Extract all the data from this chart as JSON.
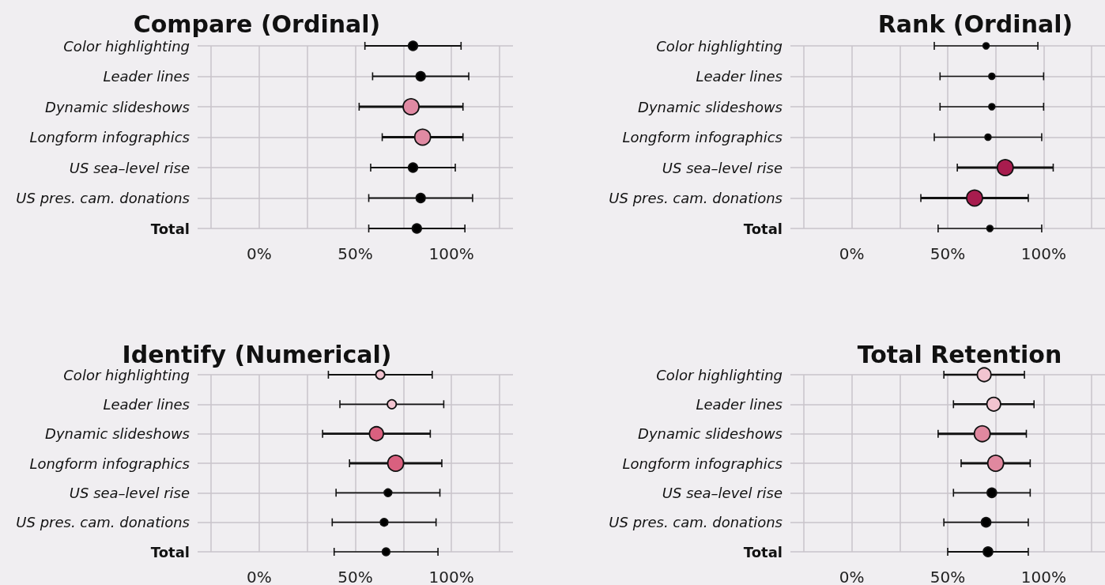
{
  "chart_data": [
    {
      "type": "bubble",
      "title": "Compare (Ordinal)",
      "categories": [
        "Color highlighting",
        "Leader lines",
        "Dynamic slideshows",
        "Longform infographics",
        "US sea–level rise",
        "US pres. cam. donations",
        "Total"
      ],
      "values": [
        80,
        84,
        79,
        85,
        80,
        84,
        82
      ],
      "errors": [
        [
          55,
          105
        ],
        [
          59,
          109
        ],
        [
          52,
          106
        ],
        [
          64,
          106
        ],
        [
          58,
          102
        ],
        [
          57,
          111
        ],
        [
          57,
          107
        ]
      ],
      "sizes": [
        0.33,
        0.33,
        1,
        1,
        0.33,
        0.33,
        0.33
      ],
      "colors": [
        "#000000",
        "#000000",
        "#e08aa3",
        "#e08aa3",
        "#000000",
        "#000000",
        "#000000"
      ],
      "orientation": "horizontal",
      "xlim": [
        -32,
        132
      ],
      "xticks": [
        {
          "value": -25,
          "label": null
        },
        {
          "value": 0,
          "label": "0%"
        },
        {
          "value": 25,
          "label": null
        },
        {
          "value": 50,
          "label": "50%"
        },
        {
          "value": 75,
          "label": null
        },
        {
          "value": 100,
          "label": "100%"
        },
        {
          "value": 125,
          "label": null
        }
      ],
      "grid": true
    },
    {
      "type": "bubble",
      "title": "Rank (Ordinal)",
      "categories": [
        "Color highlighting",
        "Leader lines",
        "Dynamic slideshows",
        "Longform infographics",
        "US sea–level rise",
        "US pres. cam. donations",
        "Total"
      ],
      "values": [
        70,
        73,
        73,
        71,
        80,
        64,
        72
      ],
      "errors": [
        [
          43,
          97
        ],
        [
          46,
          100
        ],
        [
          46,
          100
        ],
        [
          43,
          99
        ],
        [
          55,
          105
        ],
        [
          36,
          92
        ],
        [
          45,
          99
        ]
      ],
      "sizes": [
        0.15,
        0.15,
        0.15,
        0.15,
        1,
        1,
        0.15
      ],
      "colors": [
        "#000000",
        "#000000",
        "#000000",
        "#000000",
        "#a81c4e",
        "#a81c4e",
        "#000000"
      ],
      "orientation": "horizontal",
      "xlim": [
        -32,
        132
      ],
      "xticks": [
        {
          "value": -25,
          "label": null
        },
        {
          "value": 0,
          "label": "0%"
        },
        {
          "value": 25,
          "label": null
        },
        {
          "value": 50,
          "label": "50%"
        },
        {
          "value": 75,
          "label": null
        },
        {
          "value": 100,
          "label": "100%"
        },
        {
          "value": 125,
          "label": null
        }
      ],
      "grid": true
    },
    {
      "type": "bubble",
      "title": "Identify (Numerical)",
      "categories": [
        "Color highlighting",
        "Leader lines",
        "Dynamic slideshows",
        "Longform infographics",
        "US sea–level rise",
        "US pres. cam. donations",
        "Total"
      ],
      "values": [
        63,
        69,
        61,
        71,
        67,
        65,
        66
      ],
      "errors": [
        [
          36,
          90
        ],
        [
          42,
          96
        ],
        [
          33,
          89
        ],
        [
          47,
          95
        ],
        [
          40,
          94
        ],
        [
          38,
          92
        ],
        [
          39,
          93
        ]
      ],
      "sizes": [
        0.32,
        0.32,
        0.78,
        1,
        0.23,
        0.23,
        0.23
      ],
      "colors": [
        "#f2c4d0",
        "#f2c4d0",
        "#d9607f",
        "#d9607f",
        "#000000",
        "#000000",
        "#000000"
      ],
      "orientation": "horizontal",
      "xlim": [
        -32,
        132
      ],
      "xticks": [
        {
          "value": -25,
          "label": null
        },
        {
          "value": 0,
          "label": "0%"
        },
        {
          "value": 25,
          "label": null
        },
        {
          "value": 50,
          "label": "50%"
        },
        {
          "value": 75,
          "label": null
        },
        {
          "value": 100,
          "label": "100%"
        },
        {
          "value": 125,
          "label": null
        }
      ],
      "grid": true
    },
    {
      "type": "bubble",
      "title": "Total Retention",
      "categories": [
        "Color highlighting",
        "Leader lines",
        "Dynamic slideshows",
        "Longform infographics",
        "US sea–level rise",
        "US pres. cam. donations",
        "Total"
      ],
      "values": [
        69,
        74,
        68,
        75,
        73,
        70,
        71
      ],
      "errors": [
        [
          48,
          90
        ],
        [
          53,
          95
        ],
        [
          45,
          91
        ],
        [
          57,
          93
        ],
        [
          53,
          93
        ],
        [
          48,
          92
        ],
        [
          50,
          92
        ]
      ],
      "sizes": [
        0.75,
        0.75,
        1,
        1,
        0.35,
        0.35,
        0.35
      ],
      "colors": [
        "#f2c4d0",
        "#f2c4d0",
        "#e0889f",
        "#e0889f",
        "#000000",
        "#000000",
        "#000000"
      ],
      "orientation": "horizontal",
      "xlim": [
        -32,
        132
      ],
      "xticks": [
        {
          "value": -25,
          "label": null
        },
        {
          "value": 0,
          "label": "0%"
        },
        {
          "value": 25,
          "label": null
        },
        {
          "value": 50,
          "label": "50%"
        },
        {
          "value": 75,
          "label": null
        },
        {
          "value": 100,
          "label": "100%"
        },
        {
          "value": 125,
          "label": null
        }
      ],
      "grid": true
    }
  ]
}
